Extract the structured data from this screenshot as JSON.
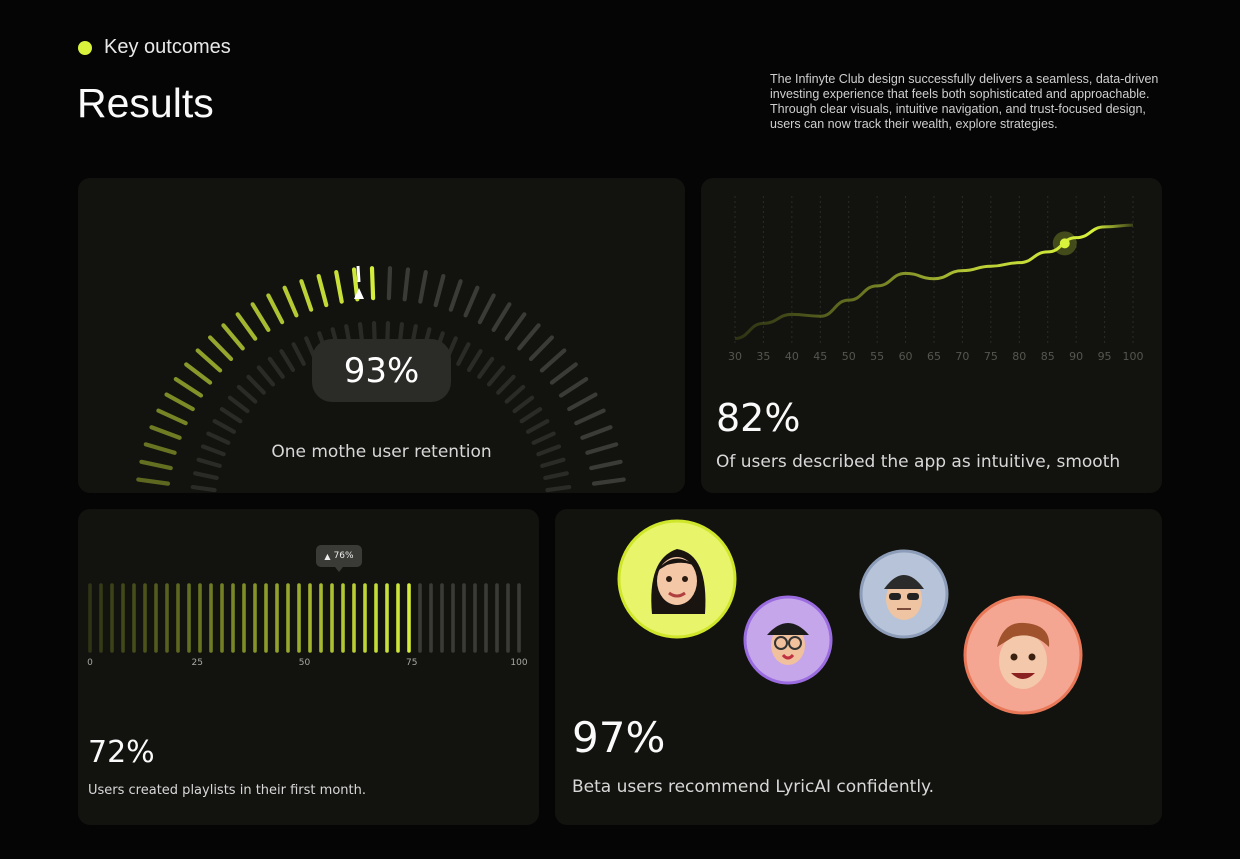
{
  "header": {
    "eyebrow": "Key outcomes",
    "title": "Results",
    "intro": "The Infinyte Club design successfully delivers a seamless, data-driven investing experience that feels both sophisticated and approachable. Through clear visuals, intuitive navigation, and trust-focused design, users can now track their wealth, explore strategies."
  },
  "colors": {
    "accent": "#d9f23c",
    "background": "#050505",
    "card": "#12130f",
    "muted_tick": "#3a3b36"
  },
  "retention": {
    "value_label": "93%",
    "caption": "One mothe user retention",
    "level": 0.5
  },
  "intuitive": {
    "value_label": "82%",
    "caption": "Of users described the app as intuitive, smooth"
  },
  "playlists": {
    "value_label": "72%",
    "caption": "Users created playlists in their first month.",
    "tooltip": "76%",
    "level": 0.76
  },
  "recommend": {
    "value_label": "97%",
    "caption": "Beta users recommend LyricAI confidently.",
    "avatars": [
      {
        "name": "woman-long-hair-avatar",
        "color": "#e8f56a"
      },
      {
        "name": "cap-glasses-avatar",
        "color": "#c6a6ea"
      },
      {
        "name": "beanie-sunglasses-avatar",
        "color": "#b6c3d8"
      },
      {
        "name": "smiling-boy-avatar",
        "color": "#f4a692"
      }
    ]
  },
  "chart_data": [
    {
      "type": "line",
      "x": [
        30,
        35,
        40,
        45,
        50,
        55,
        60,
        65,
        70,
        75,
        80,
        85,
        90,
        95,
        100
      ],
      "y": [
        0.05,
        0.22,
        0.32,
        0.3,
        0.48,
        0.64,
        0.78,
        0.72,
        0.81,
        0.86,
        0.9,
        1.02,
        1.18,
        1.3,
        1.32
      ],
      "highlight_x": 88,
      "xlabels": [
        "30",
        "35",
        "40",
        "45",
        "50",
        "55",
        "60",
        "65",
        "70",
        "75",
        "80",
        "85",
        "90",
        "95",
        "100"
      ],
      "grid": true
    },
    {
      "type": "bar",
      "x_ticks": [
        "0",
        "25",
        "50",
        "75",
        "100"
      ],
      "level_percent": 76,
      "tooltip": "76%"
    }
  ]
}
